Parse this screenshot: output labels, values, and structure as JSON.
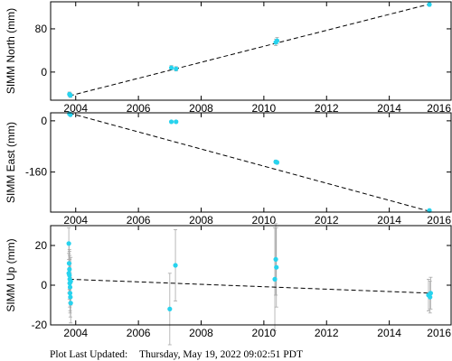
{
  "footer": {
    "label": "Plot Last Updated:",
    "timestamp": "Thursday, May 19, 2022 09:02:51 PDT"
  },
  "style": {
    "point_color": "#27D3EE",
    "trend_color": "#000000",
    "errorbar_color": "#A8A8A8"
  },
  "chart_data": [
    {
      "type": "scatter",
      "ylabel": "SIMM North (mm)",
      "xlim": [
        2003.2,
        2016.0
      ],
      "ylim": [
        -52,
        130
      ],
      "xticks": [
        2004,
        2006,
        2008,
        2010,
        2012,
        2014,
        2016
      ],
      "yticks": [
        0,
        80
      ],
      "grid": false,
      "points": [
        {
          "x": 2003.8,
          "y": -41,
          "err": 4
        },
        {
          "x": 2003.83,
          "y": -43,
          "err": 4
        },
        {
          "x": 2007.05,
          "y": 8,
          "err": 4
        },
        {
          "x": 2007.2,
          "y": 6,
          "err": 4
        },
        {
          "x": 2010.38,
          "y": 55,
          "err": 6
        },
        {
          "x": 2010.42,
          "y": 58,
          "err": 6
        },
        {
          "x": 2015.28,
          "y": 125,
          "err": 3
        }
      ],
      "trend": [
        {
          "x": 2003.8,
          "y": -44
        },
        {
          "x": 2015.3,
          "y": 126
        }
      ]
    },
    {
      "type": "scatter",
      "ylabel": "SIMM East (mm)",
      "xlim": [
        2003.2,
        2016.0
      ],
      "ylim": [
        -285,
        25
      ],
      "xticks": [
        2004,
        2006,
        2008,
        2010,
        2012,
        2014,
        2016
      ],
      "yticks": [
        0,
        -160
      ],
      "grid": false,
      "points": [
        {
          "x": 2003.8,
          "y": 22,
          "err": 4
        },
        {
          "x": 2003.83,
          "y": 19,
          "err": 4
        },
        {
          "x": 2007.05,
          "y": -3,
          "err": 4
        },
        {
          "x": 2007.2,
          "y": -3,
          "err": 4
        },
        {
          "x": 2010.38,
          "y": -128,
          "err": 5
        },
        {
          "x": 2010.42,
          "y": -130,
          "err": 5
        },
        {
          "x": 2015.28,
          "y": -280,
          "err": 3
        }
      ],
      "trend": [
        {
          "x": 2003.8,
          "y": 24
        },
        {
          "x": 2015.3,
          "y": -283
        }
      ]
    },
    {
      "type": "scatter",
      "ylabel": "SIMM Up (mm)",
      "xlim": [
        2003.2,
        2016.0
      ],
      "ylim": [
        -20,
        30
      ],
      "xticks": [
        2004,
        2006,
        2008,
        2010,
        2012,
        2014,
        2016
      ],
      "yticks": [
        -20,
        0,
        20
      ],
      "grid": false,
      "points": [
        {
          "x": 2003.78,
          "y": 21,
          "err": 8
        },
        {
          "x": 2003.79,
          "y": 11,
          "err": 10
        },
        {
          "x": 2003.8,
          "y": 8,
          "err": 10
        },
        {
          "x": 2003.8,
          "y": 5,
          "err": 12
        },
        {
          "x": 2003.81,
          "y": 3,
          "err": 12
        },
        {
          "x": 2003.81,
          "y": 1,
          "err": 12
        },
        {
          "x": 2003.82,
          "y": -1,
          "err": 12
        },
        {
          "x": 2003.82,
          "y": -4,
          "err": 10
        },
        {
          "x": 2003.83,
          "y": -6,
          "err": 10
        },
        {
          "x": 2003.84,
          "y": -9,
          "err": 10
        },
        {
          "x": 2003.78,
          "y": 6,
          "err": 10
        },
        {
          "x": 2003.84,
          "y": 2,
          "err": 12
        },
        {
          "x": 2007.0,
          "y": -12,
          "err": 18
        },
        {
          "x": 2007.18,
          "y": 10,
          "err": 18
        },
        {
          "x": 2010.35,
          "y": 3,
          "err": 26
        },
        {
          "x": 2010.38,
          "y": 13,
          "err": 18
        },
        {
          "x": 2010.4,
          "y": 9,
          "err": 20
        },
        {
          "x": 2015.25,
          "y": -5,
          "err": 8
        },
        {
          "x": 2015.3,
          "y": -6,
          "err": 8
        },
        {
          "x": 2015.32,
          "y": -4,
          "err": 8
        }
      ],
      "trend": [
        {
          "x": 2003.8,
          "y": 3
        },
        {
          "x": 2015.3,
          "y": -4
        }
      ]
    }
  ]
}
